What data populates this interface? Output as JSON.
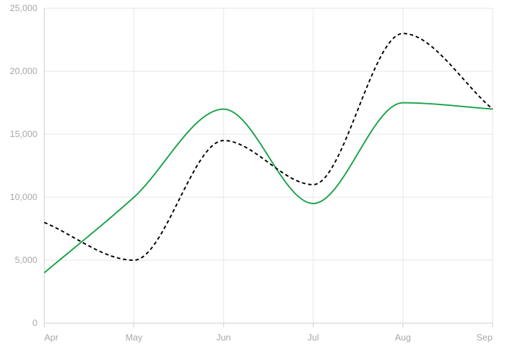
{
  "chart_data": {
    "type": "line",
    "title": "",
    "xlabel": "",
    "ylabel": "",
    "categories": [
      "Apr",
      "May",
      "Jun",
      "Jul",
      "Aug",
      "Sep"
    ],
    "ylim": [
      0,
      25000
    ],
    "y_ticks": [
      0,
      5000,
      10000,
      15000,
      20000,
      25000
    ],
    "y_tick_labels": [
      "0",
      "5,000",
      "10,000",
      "15,000",
      "20,000",
      "25,000"
    ],
    "grid": true,
    "legend": "none",
    "series": [
      {
        "style": "solid",
        "color": "#1aa34a",
        "values": [
          4000,
          10000,
          17000,
          9500,
          17500,
          17000
        ]
      },
      {
        "style": "dashed",
        "color": "#000000",
        "values": [
          8000,
          5000,
          14500,
          11000,
          23000,
          17000
        ]
      }
    ]
  }
}
